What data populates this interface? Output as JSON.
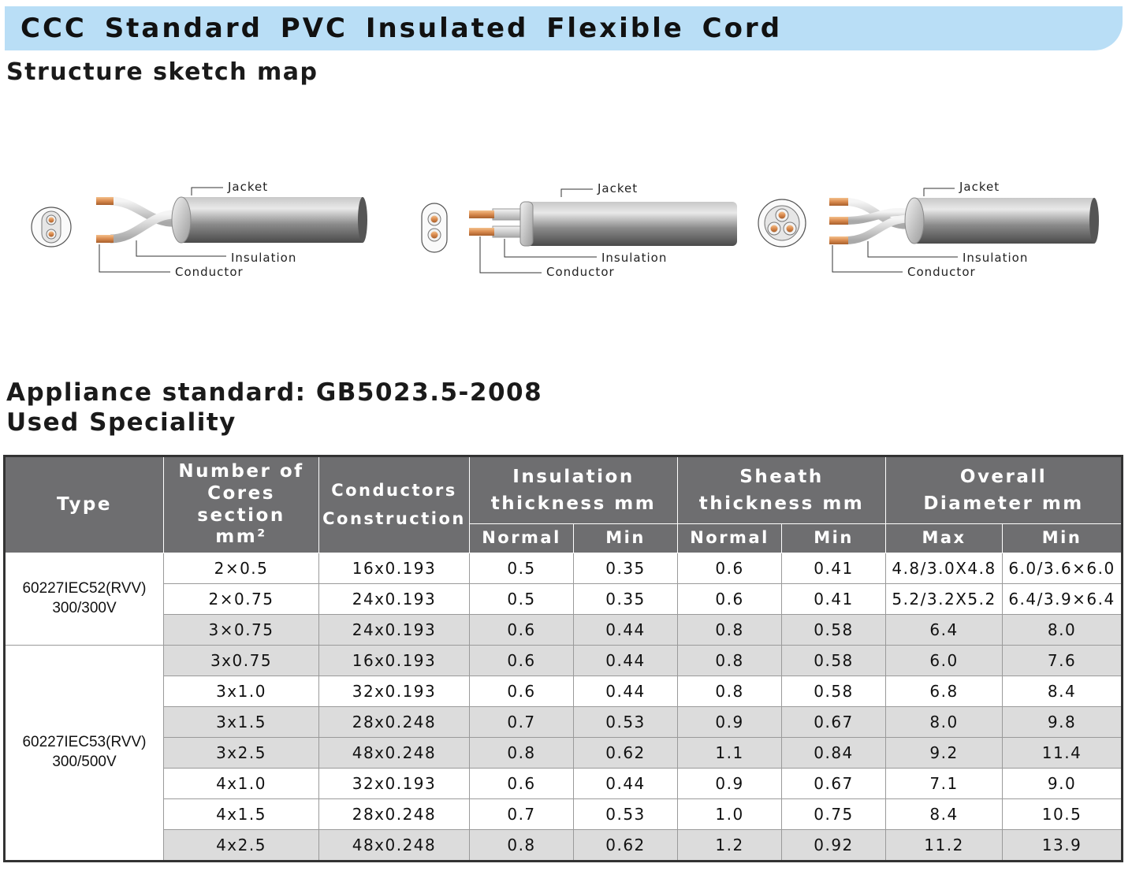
{
  "header": {
    "title": "CCC  Standard  PVC Insulated  Flexible Cord",
    "sketch_heading": "Structure sketch map"
  },
  "sketch": {
    "labels": {
      "jacket": "Jacket",
      "insulation": "Insulation",
      "conductor": "Conductor"
    },
    "colors": {
      "copper": "#d98a4e",
      "sheath": "#7a7a7a",
      "title_bg": "#b9def6",
      "header_bg": "#6e6e70",
      "row_shade": "#dcdcdc"
    }
  },
  "standard": {
    "line1": "Appliance standard:  GB5023.5-2008",
    "line2": "Used  Speciality"
  },
  "table": {
    "headers": {
      "type": "Type",
      "cores_1": "Number of",
      "cores_2": "Cores",
      "cores_3": "section",
      "cores_4": "mm²",
      "conductors_1": "Conductors",
      "conductors_2": "Construction",
      "insulation_1": "Insulation",
      "insulation_2": "thickness mm",
      "sheath_1": "Sheath",
      "sheath_2": "thickness mm",
      "overall_1": "Overall",
      "overall_2": "Diameter mm",
      "ins_normal": "Normal",
      "ins_min": "Min",
      "sh_normal": "Normal",
      "sh_min": "Min",
      "od_max": "Max",
      "od_min": "Min"
    },
    "types": [
      {
        "line1": "60227IEC52(RVV)",
        "line2": "300/300V"
      },
      {
        "line1": "60227IEC53(RVV)",
        "line2": "300/500V"
      }
    ],
    "rows": [
      [
        "2×0.5",
        "16x0.193",
        "0.5",
        "0.35",
        "0.6",
        "0.41",
        "4.8/3.0X4.8",
        "6.0/3.6×6.0"
      ],
      [
        "2×0.75",
        "24x0.193",
        "0.5",
        "0.35",
        "0.6",
        "0.41",
        "5.2/3.2X5.2",
        "6.4/3.9×6.4"
      ],
      [
        "3×0.75",
        "24x0.193",
        "0.6",
        "0.44",
        "0.8",
        "0.58",
        "6.4",
        "8.0"
      ],
      [
        "3x0.75",
        "16x0.193",
        "0.6",
        "0.44",
        "0.8",
        "0.58",
        "6.0",
        "7.6"
      ],
      [
        "3x1.0",
        "32x0.193",
        "0.6",
        "0.44",
        "0.8",
        "0.58",
        "6.8",
        "8.4"
      ],
      [
        "3x1.5",
        "28x0.248",
        "0.7",
        "0.53",
        "0.9",
        "0.67",
        "8.0",
        "9.8"
      ],
      [
        "3x2.5",
        "48x0.248",
        "0.8",
        "0.62",
        "1.1",
        "0.84",
        "9.2",
        "11.4"
      ],
      [
        "4x1.0",
        "32x0.193",
        "0.6",
        "0.44",
        "0.9",
        "0.67",
        "7.1",
        "9.0"
      ],
      [
        "4x1.5",
        "28x0.248",
        "0.7",
        "0.53",
        "1.0",
        "0.75",
        "8.4",
        "10.5"
      ],
      [
        "4x2.5",
        "48x0.248",
        "0.8",
        "0.62",
        "1.2",
        "0.92",
        "11.2",
        "13.9"
      ]
    ]
  }
}
